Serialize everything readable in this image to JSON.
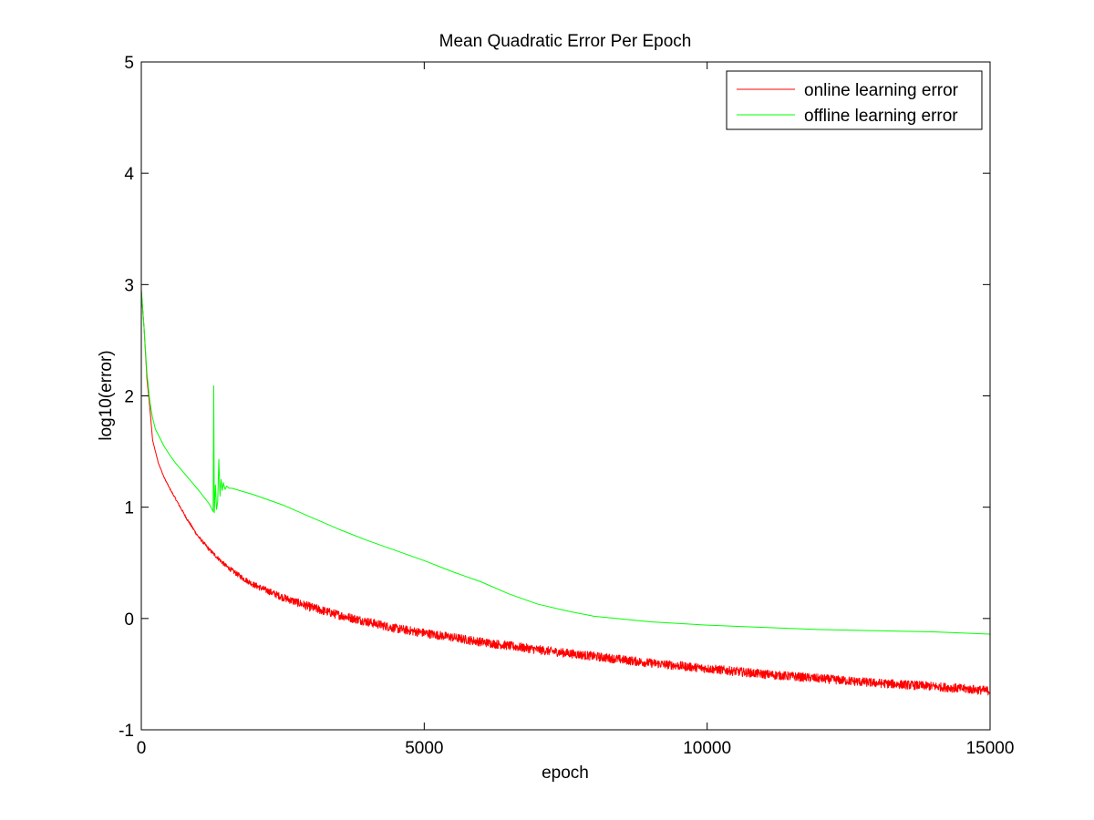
{
  "chart_data": {
    "type": "line",
    "title": "Mean Quadratic Error Per Epoch",
    "xlabel": "epoch",
    "ylabel": "log10(error)",
    "xlim": [
      0,
      15000
    ],
    "ylim": [
      -1,
      5
    ],
    "xticks": [
      0,
      5000,
      10000,
      15000
    ],
    "yticks": [
      -1,
      0,
      1,
      2,
      3,
      4,
      5
    ],
    "grid": false,
    "legend_position": "top-right",
    "series": [
      {
        "name": "online learning error",
        "color": "#ff0000",
        "noise": 0.04,
        "x": [
          0,
          50,
          100,
          150,
          200,
          300,
          400,
          500,
          600,
          800,
          1000,
          1200,
          1500,
          1800,
          2000,
          2500,
          3000,
          3500,
          4000,
          4500,
          5000,
          5500,
          6000,
          7000,
          8000,
          9000,
          10000,
          11000,
          12000,
          13000,
          14000,
          15000
        ],
        "y": [
          2.95,
          2.6,
          2.15,
          1.9,
          1.6,
          1.4,
          1.27,
          1.17,
          1.08,
          0.9,
          0.74,
          0.62,
          0.47,
          0.36,
          0.3,
          0.19,
          0.1,
          0.03,
          -0.03,
          -0.09,
          -0.13,
          -0.17,
          -0.21,
          -0.28,
          -0.34,
          -0.4,
          -0.45,
          -0.5,
          -0.54,
          -0.58,
          -0.61,
          -0.65
        ]
      },
      {
        "name": "offline learning error",
        "color": "#00ff00",
        "noise": 0,
        "x": [
          0,
          50,
          100,
          150,
          200,
          250,
          300,
          400,
          500,
          600,
          800,
          1000,
          1200,
          1270,
          1280,
          1290,
          1310,
          1330,
          1350,
          1370,
          1390,
          1410,
          1430,
          1450,
          1480,
          1510,
          1550,
          1600,
          2000,
          2500,
          3000,
          3500,
          4000,
          4500,
          5000,
          5500,
          6000,
          6500,
          7000,
          7500,
          8000,
          9000,
          10000,
          11000,
          12000,
          13000,
          14000,
          15000
        ],
        "y": [
          2.95,
          2.6,
          2.2,
          1.95,
          1.8,
          1.7,
          1.65,
          1.55,
          1.47,
          1.4,
          1.28,
          1.16,
          1.03,
          0.96,
          2.09,
          0.95,
          1.2,
          0.98,
          1.05,
          1.43,
          1.1,
          1.25,
          1.15,
          1.22,
          1.16,
          1.19,
          1.17,
          1.17,
          1.11,
          1.02,
          0.91,
          0.8,
          0.7,
          0.61,
          0.52,
          0.42,
          0.33,
          0.22,
          0.13,
          0.07,
          0.02,
          -0.03,
          -0.06,
          -0.08,
          -0.1,
          -0.11,
          -0.12,
          -0.14
        ]
      }
    ]
  }
}
